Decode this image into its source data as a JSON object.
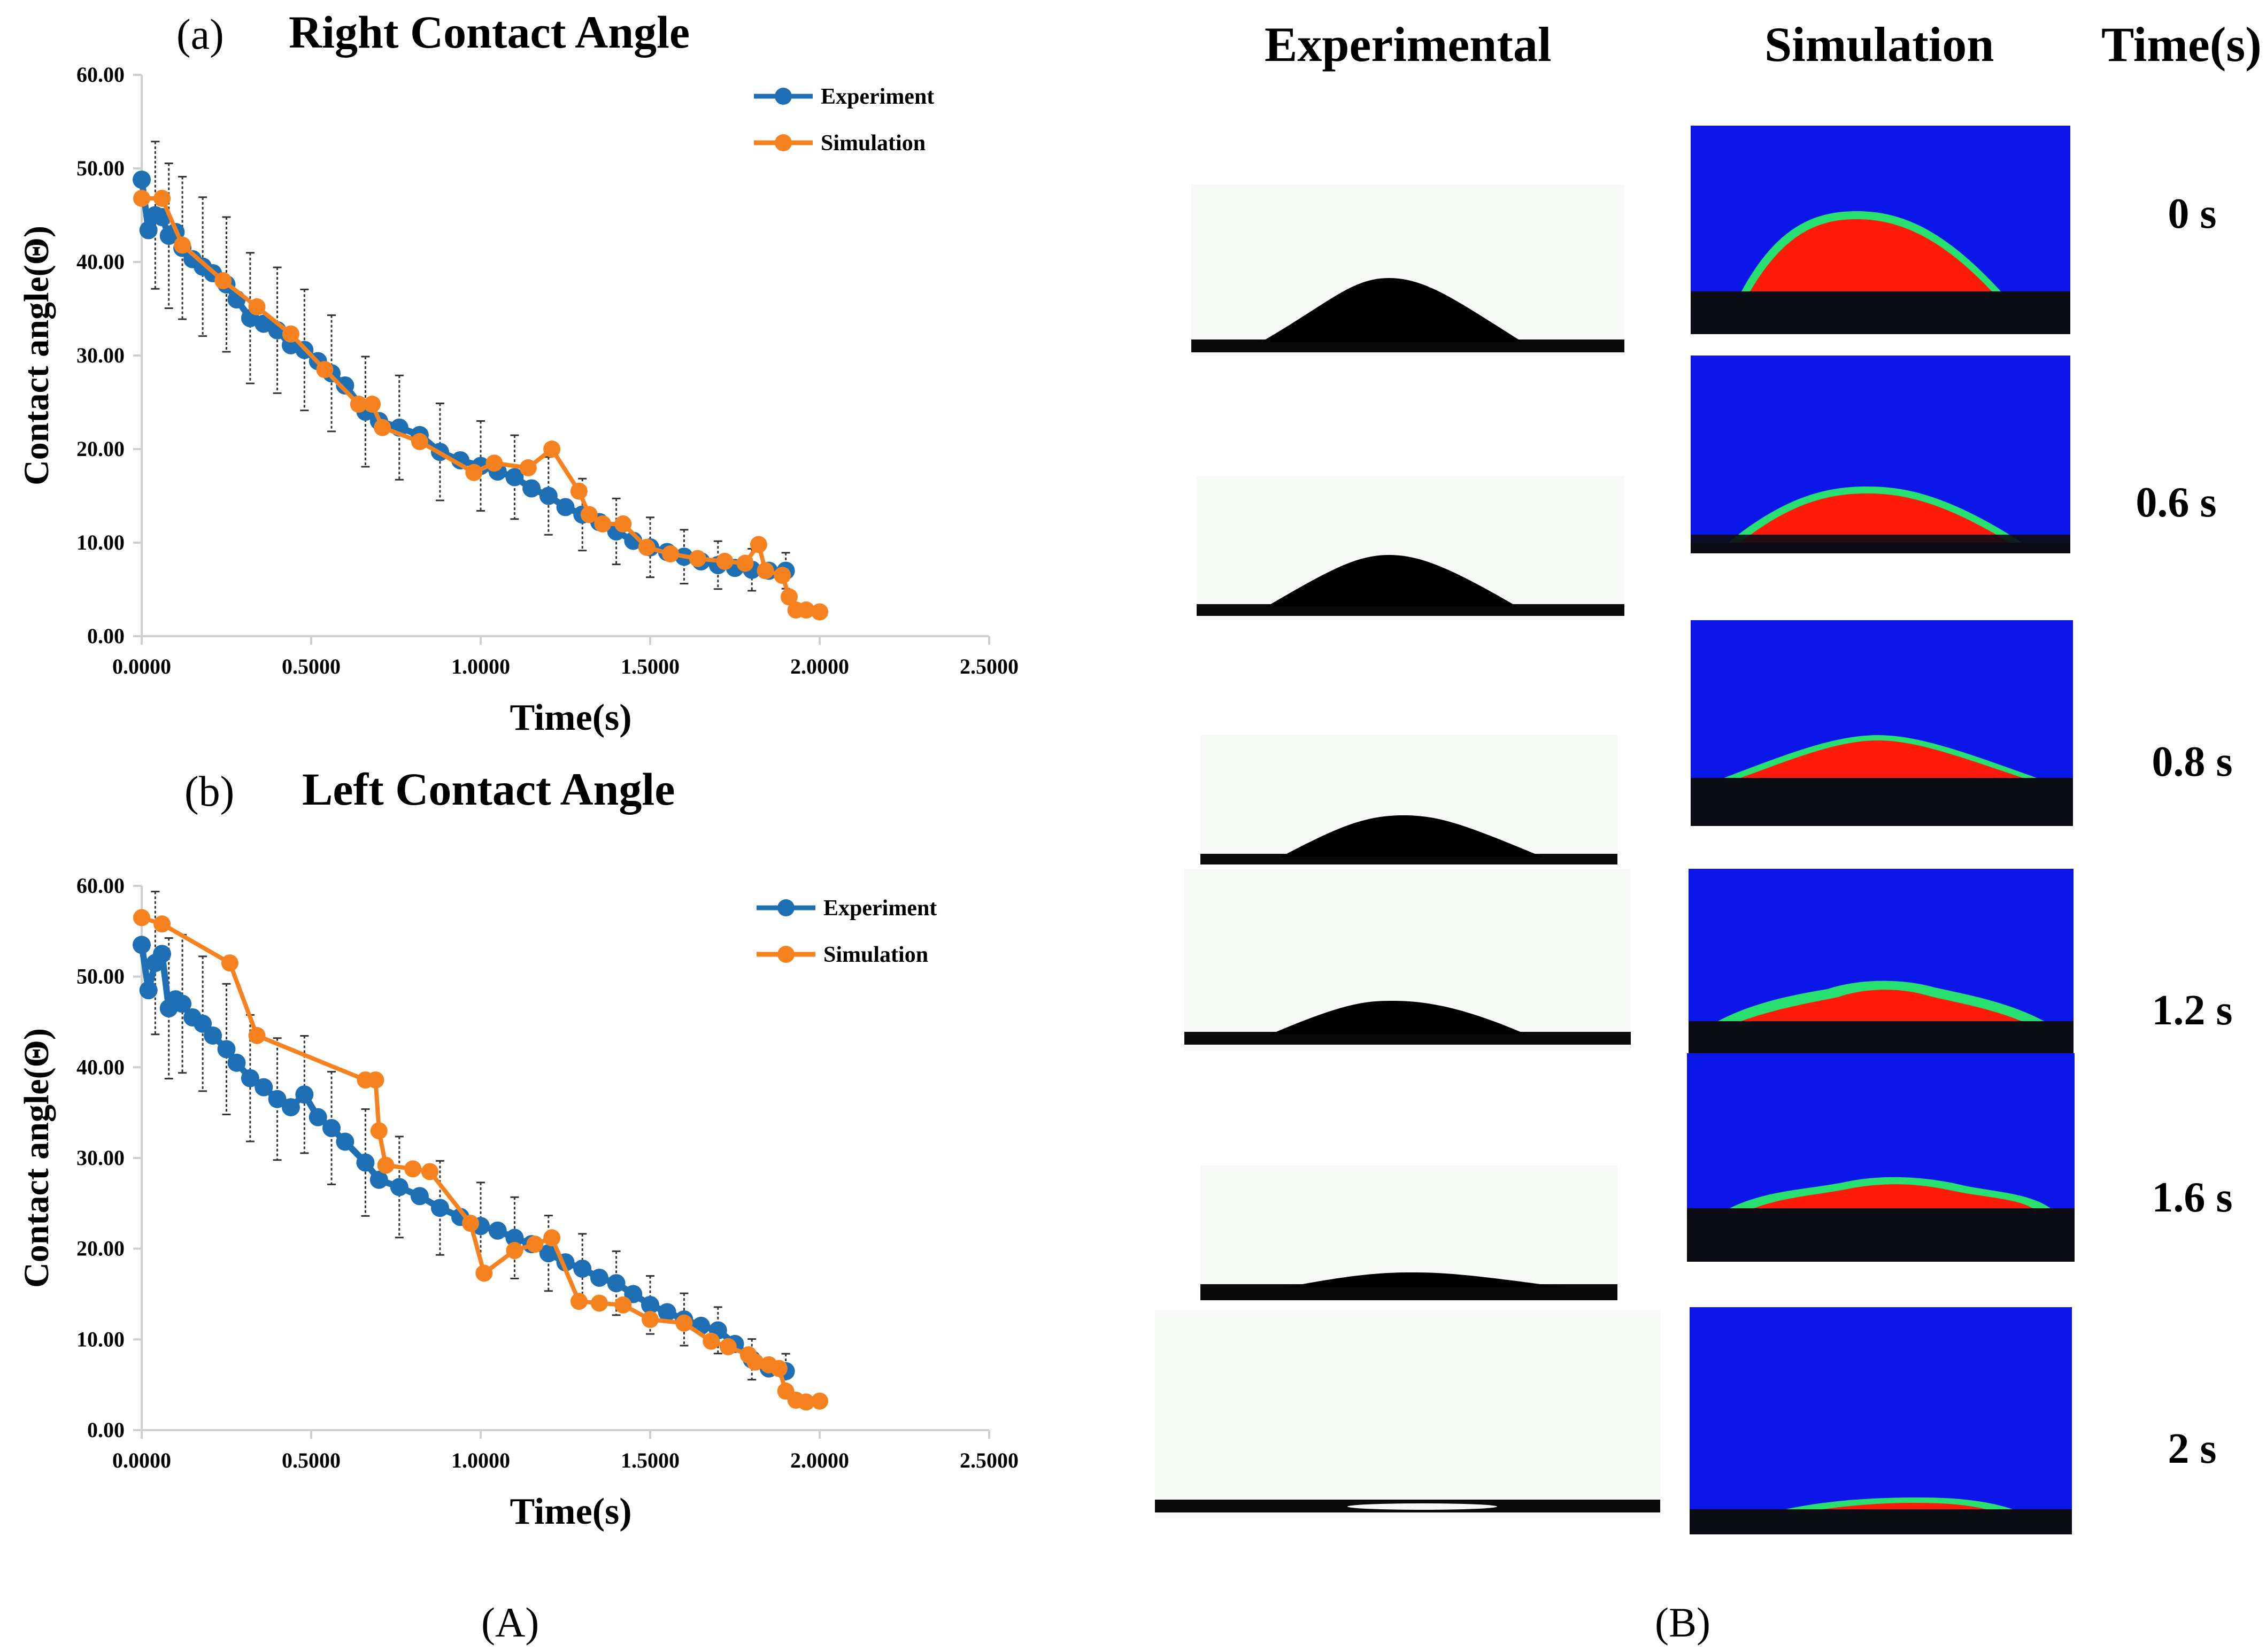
{
  "figure_labels": {
    "left": "(A)",
    "right": "(B)"
  },
  "chart_data": [
    {
      "type": "line",
      "panel": "(a)",
      "title": "Right Contact Angle",
      "xlabel": "Time(s)",
      "ylabel": "Contact angle(Θ)",
      "xlim": [
        0,
        2.5
      ],
      "ylim": [
        0,
        60
      ],
      "xticks": [
        "0.0000",
        "0.5000",
        "1.0000",
        "1.5000",
        "2.0000",
        "2.5000"
      ],
      "yticks": [
        "0.00",
        "10.00",
        "20.00",
        "30.00",
        "40.00",
        "50.00",
        "60.00"
      ],
      "legend_position": "top-right",
      "series": [
        {
          "name": "Experiment",
          "color": "#1f6fb4",
          "x": [
            0.0,
            0.02,
            0.04,
            0.06,
            0.08,
            0.1,
            0.12,
            0.15,
            0.18,
            0.21,
            0.25,
            0.28,
            0.32,
            0.36,
            0.4,
            0.44,
            0.48,
            0.52,
            0.56,
            0.6,
            0.66,
            0.7,
            0.76,
            0.82,
            0.88,
            0.94,
            1.0,
            1.05,
            1.1,
            1.15,
            1.2,
            1.25,
            1.3,
            1.35,
            1.4,
            1.45,
            1.5,
            1.55,
            1.6,
            1.65,
            1.7,
            1.75,
            1.8,
            1.85,
            1.9
          ],
          "y": [
            48.8,
            43.4,
            45.0,
            44.8,
            42.8,
            43.2,
            41.5,
            40.3,
            39.5,
            38.8,
            37.6,
            36.0,
            34.0,
            33.4,
            32.7,
            31.1,
            30.6,
            29.4,
            28.1,
            26.8,
            24.0,
            23.0,
            22.3,
            21.5,
            19.7,
            18.8,
            18.2,
            17.6,
            17.0,
            15.8,
            15.0,
            13.8,
            13.0,
            12.2,
            11.2,
            10.2,
            9.5,
            9.0,
            8.5,
            8.0,
            7.6,
            7.3,
            7.1,
            7.0,
            7.0
          ]
        },
        {
          "name": "Simulation",
          "color": "#f5821f",
          "x": [
            0.0,
            0.06,
            0.12,
            0.24,
            0.34,
            0.44,
            0.54,
            0.64,
            0.68,
            0.71,
            0.82,
            0.98,
            1.04,
            1.14,
            1.21,
            1.29,
            1.32,
            1.36,
            1.42,
            1.49,
            1.56,
            1.64,
            1.72,
            1.78,
            1.82,
            1.84,
            1.89,
            1.91,
            1.93,
            1.96,
            2.0
          ],
          "y": [
            46.8,
            46.8,
            41.8,
            38.0,
            35.2,
            32.3,
            28.5,
            24.8,
            24.8,
            22.3,
            20.8,
            17.5,
            18.5,
            18.0,
            20.0,
            15.5,
            13.0,
            12.0,
            12.0,
            9.5,
            8.8,
            8.3,
            8.0,
            7.8,
            9.8,
            7.0,
            6.5,
            4.2,
            2.8,
            2.8,
            2.6
          ]
        }
      ]
    },
    {
      "type": "line",
      "panel": "(b)",
      "title": "Left Contact Angle",
      "xlabel": "Time(s)",
      "ylabel": "Contact angle(Θ)",
      "xlim": [
        0,
        2.5
      ],
      "ylim": [
        0,
        60
      ],
      "xticks": [
        "0.0000",
        "0.5000",
        "1.0000",
        "1.5000",
        "2.0000",
        "2.5000"
      ],
      "yticks": [
        "0.00",
        "10.00",
        "20.00",
        "30.00",
        "40.00",
        "50.00",
        "60.00"
      ],
      "legend_position": "top-right",
      "series": [
        {
          "name": "Experiment",
          "color": "#1f6fb4",
          "x": [
            0.0,
            0.02,
            0.04,
            0.06,
            0.08,
            0.1,
            0.12,
            0.15,
            0.18,
            0.21,
            0.25,
            0.28,
            0.32,
            0.36,
            0.4,
            0.44,
            0.48,
            0.52,
            0.56,
            0.6,
            0.66,
            0.7,
            0.76,
            0.82,
            0.88,
            0.94,
            1.0,
            1.05,
            1.1,
            1.15,
            1.2,
            1.25,
            1.3,
            1.35,
            1.4,
            1.45,
            1.5,
            1.55,
            1.6,
            1.65,
            1.7,
            1.75,
            1.8,
            1.85,
            1.9
          ],
          "y": [
            53.5,
            48.5,
            51.5,
            52.5,
            46.5,
            47.5,
            47.0,
            45.5,
            44.8,
            43.5,
            42.0,
            40.5,
            38.8,
            37.8,
            36.5,
            35.6,
            37.0,
            34.5,
            33.3,
            31.8,
            29.5,
            27.6,
            26.8,
            25.8,
            24.5,
            23.5,
            22.5,
            22.0,
            21.2,
            20.5,
            19.5,
            18.5,
            17.8,
            16.8,
            16.2,
            15.0,
            13.8,
            13.0,
            12.2,
            11.5,
            11.0,
            9.5,
            7.8,
            6.8,
            6.5
          ]
        },
        {
          "name": "Simulation",
          "color": "#f5821f",
          "x": [
            0.0,
            0.06,
            0.26,
            0.34,
            0.66,
            0.69,
            0.7,
            0.72,
            0.8,
            0.85,
            0.97,
            1.01,
            1.1,
            1.16,
            1.21,
            1.29,
            1.35,
            1.42,
            1.5,
            1.6,
            1.68,
            1.73,
            1.79,
            1.81,
            1.85,
            1.88,
            1.9,
            1.93,
            1.96,
            2.0
          ],
          "y": [
            56.5,
            55.8,
            51.5,
            43.5,
            38.6,
            38.6,
            33.0,
            29.2,
            28.8,
            28.5,
            22.8,
            17.3,
            19.8,
            20.5,
            21.2,
            14.2,
            14.0,
            13.8,
            12.2,
            11.8,
            9.8,
            9.2,
            8.3,
            7.5,
            7.2,
            6.8,
            4.3,
            3.3,
            3.1,
            3.2
          ]
        }
      ]
    }
  ],
  "image_panel": {
    "headers": {
      "experimental": "Experimental",
      "simulation": "Simulation",
      "time": "Time(s)"
    },
    "time_labels": [
      "0 s",
      "0.6 s",
      "0.8 s",
      "1.2 s",
      "1.6 s",
      "2 s"
    ],
    "simulation_colors": {
      "background": "#0a17e8",
      "droplet": "#ff1a0a",
      "rim": "#27e070",
      "substrate": "#0b0c14"
    }
  }
}
